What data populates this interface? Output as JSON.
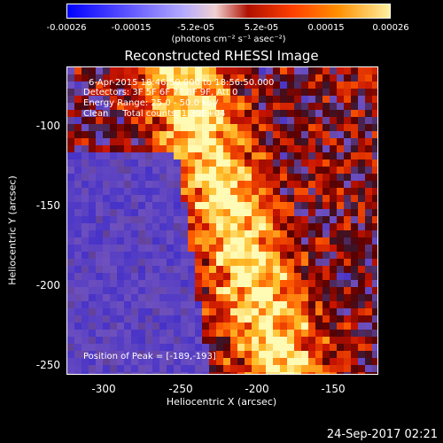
{
  "colorbar": {
    "ticks": [
      "-0.00026",
      "-0.00015",
      "-5.2e-05",
      "5.2e-05",
      "0.00015",
      "0.00026"
    ],
    "tick_values": [
      -0.00026,
      -0.00015,
      -5.2e-05,
      5.2e-05,
      0.00015,
      0.00026
    ],
    "unit": "(photons cm⁻² s⁻¹ asec⁻²)"
  },
  "chart_data": {
    "type": "heatmap",
    "title": "Reconstructed RHESSI Image",
    "xlabel": "Heliocentric X (arcsec)",
    "ylabel": "Heliocentric Y (arcsec)",
    "xlim": [
      -318,
      -127
    ],
    "ylim": [
      -256,
      -65
    ],
    "x_ticks": [
      "-300",
      "-250",
      "-200",
      "-150"
    ],
    "x_tick_values": [
      -300,
      -250,
      -200,
      -150
    ],
    "y_ticks": [
      "-100",
      "-150",
      "-200",
      "-250"
    ],
    "y_tick_values": [
      -100,
      -150,
      -200,
      -250
    ],
    "zlim": [
      -0.00026,
      0.00026
    ],
    "peak": [
      -189,
      -193
    ]
  },
  "info": {
    "line1": "6-Apr-2015 18:46:50.000 to 18:56:50.000",
    "line2": "Detectors: 3F 5F 6F 7F 8F 9F, Att 0",
    "line3": "Energy Range: 25.0 - 50.0 keV",
    "line4": "Clean     Total counts: 1.30E+04",
    "peak_text": "Position of Peak = [-189,-193]"
  },
  "footer": {
    "timestamp": "24-Sep-2017 02:21"
  }
}
